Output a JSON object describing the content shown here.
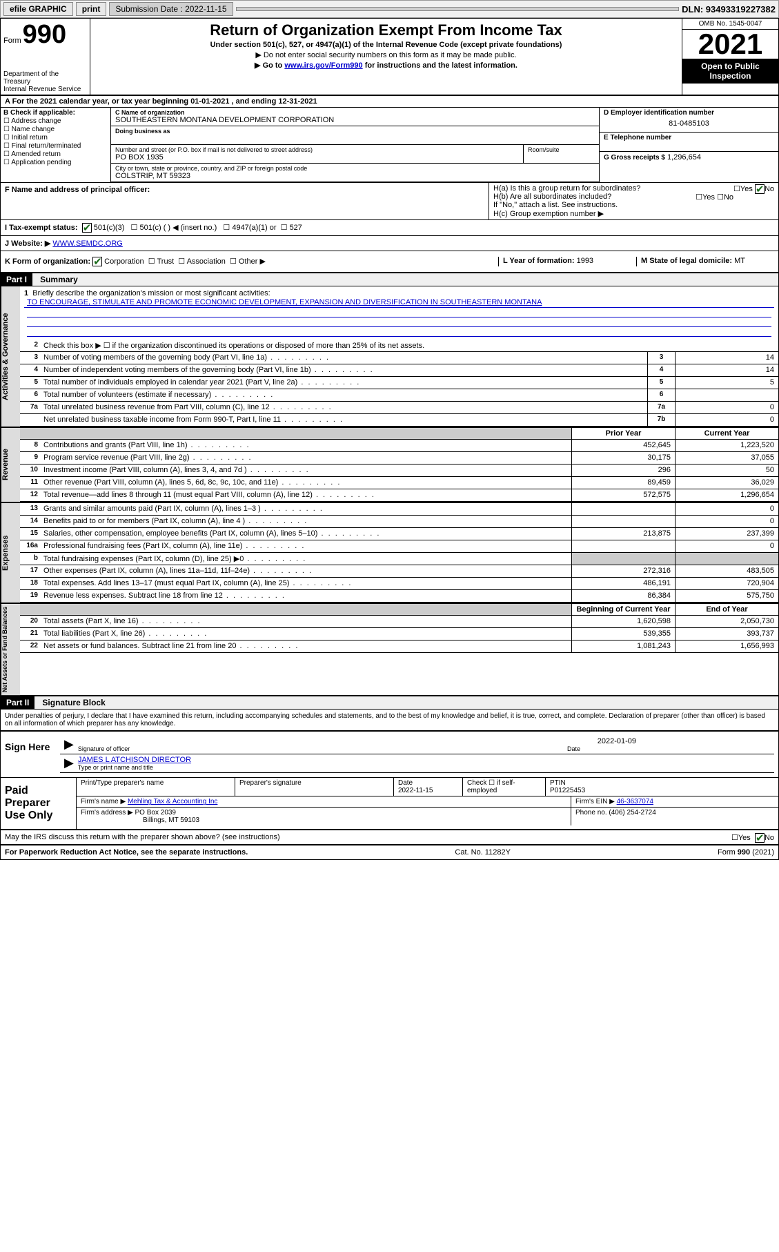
{
  "topbar": {
    "efile": "efile GRAPHIC",
    "print": "print",
    "submission_label": "Submission Date : 2022-11-15",
    "dln": "DLN: 93493319227382"
  },
  "header": {
    "form_prefix": "Form",
    "form_number": "990",
    "title": "Return of Organization Exempt From Income Tax",
    "subtitle": "Under section 501(c), 527, or 4947(a)(1) of the Internal Revenue Code (except private foundations)",
    "note1": "▶ Do not enter social security numbers on this form as it may be made public.",
    "note2_pre": "▶ Go to ",
    "note2_link": "www.irs.gov/Form990",
    "note2_post": " for instructions and the latest information.",
    "dept": "Department of the Treasury",
    "irs": "Internal Revenue Service",
    "omb": "OMB No. 1545-0047",
    "year": "2021",
    "open_public": "Open to Public Inspection"
  },
  "sectionA": {
    "cal_year": "A For the 2021 calendar year, or tax year beginning 01-01-2021    , and ending 12-31-2021",
    "b_label": "B Check if applicable:",
    "checks": [
      "Address change",
      "Name change",
      "Initial return",
      "Final return/terminated",
      "Amended return",
      "Application pending"
    ],
    "c_label": "C Name of organization",
    "org_name": "SOUTHEASTERN MONTANA DEVELOPMENT CORPORATION",
    "dba_label": "Doing business as",
    "addr_label": "Number and street (or P.O. box if mail is not delivered to street address)",
    "room_label": "Room/suite",
    "addr": "PO BOX 1935",
    "city_label": "City or town, state or province, country, and ZIP or foreign postal code",
    "city": "COLSTRIP, MT  59323",
    "d_label": "D Employer identification number",
    "ein": "81-0485103",
    "e_label": "E Telephone number",
    "g_label": "G Gross receipts $",
    "g_val": "1,296,654",
    "f_label": "F  Name and address of principal officer:",
    "ha": "H(a)  Is this a group return for subordinates?",
    "hb": "H(b)  Are all subordinates included?",
    "hb_note": "If \"No,\" attach a list. See instructions.",
    "hc": "H(c)  Group exemption number ▶",
    "yes": "Yes",
    "no": "No"
  },
  "sectionI": {
    "i_label": "I    Tax-exempt status:",
    "c3": "501(c)(3)",
    "c_other": "501(c) (  ) ◀ (insert no.)",
    "a1": "4947(a)(1) or",
    "s527": "527",
    "j_label": "J    Website: ▶",
    "website": "WWW.SEMDC.ORG"
  },
  "sectionK": {
    "k_label": "K Form of organization:",
    "corp": "Corporation",
    "trust": "Trust",
    "assoc": "Association",
    "other": "Other ▶",
    "l_label": "L Year of formation:",
    "l_val": "1993",
    "m_label": "M State of legal domicile:",
    "m_val": "MT"
  },
  "part1": {
    "hdr": "Part I",
    "title": "Summary",
    "tab_gov": "Activities & Governance",
    "tab_rev": "Revenue",
    "tab_exp": "Expenses",
    "tab_net": "Net Assets or Fund Balances",
    "prior": "Prior Year",
    "current": "Current Year",
    "begin": "Beginning of Current Year",
    "end": "End of Year",
    "line1_label": "Briefly describe the organization's mission or most significant activities:",
    "mission": "TO ENCOURAGE, STIMULATE AND PROMOTE ECONOMIC DEVELOPMENT, EXPANSION AND DIVERSIFICATION IN SOUTHEASTERN MONTANA",
    "lines_gov": [
      {
        "n": "2",
        "d": "Check this box ▶ ☐  if the organization discontinued its operations or disposed of more than 25% of its net assets."
      },
      {
        "n": "3",
        "d": "Number of voting members of the governing body (Part VI, line 1a)",
        "box": "3",
        "v": "14"
      },
      {
        "n": "4",
        "d": "Number of independent voting members of the governing body (Part VI, line 1b)",
        "box": "4",
        "v": "14"
      },
      {
        "n": "5",
        "d": "Total number of individuals employed in calendar year 2021 (Part V, line 2a)",
        "box": "5",
        "v": "5"
      },
      {
        "n": "6",
        "d": "Total number of volunteers (estimate if necessary)",
        "box": "6",
        "v": ""
      },
      {
        "n": "7a",
        "d": "Total unrelated business revenue from Part VIII, column (C), line 12",
        "box": "7a",
        "v": "0"
      },
      {
        "n": "",
        "d": "Net unrelated business taxable income from Form 990-T, Part I, line 11",
        "box": "7b",
        "v": "0"
      }
    ],
    "lines_rev": [
      {
        "n": "8",
        "d": "Contributions and grants (Part VIII, line 1h)",
        "p": "452,645",
        "c": "1,223,520"
      },
      {
        "n": "9",
        "d": "Program service revenue (Part VIII, line 2g)",
        "p": "30,175",
        "c": "37,055"
      },
      {
        "n": "10",
        "d": "Investment income (Part VIII, column (A), lines 3, 4, and 7d )",
        "p": "296",
        "c": "50"
      },
      {
        "n": "11",
        "d": "Other revenue (Part VIII, column (A), lines 5, 6d, 8c, 9c, 10c, and 11e)",
        "p": "89,459",
        "c": "36,029"
      },
      {
        "n": "12",
        "d": "Total revenue—add lines 8 through 11 (must equal Part VIII, column (A), line 12)",
        "p": "572,575",
        "c": "1,296,654"
      }
    ],
    "lines_exp": [
      {
        "n": "13",
        "d": "Grants and similar amounts paid (Part IX, column (A), lines 1–3 )",
        "p": "",
        "c": "0"
      },
      {
        "n": "14",
        "d": "Benefits paid to or for members (Part IX, column (A), line 4 )",
        "p": "",
        "c": "0"
      },
      {
        "n": "15",
        "d": "Salaries, other compensation, employee benefits (Part IX, column (A), lines 5–10)",
        "p": "213,875",
        "c": "237,399"
      },
      {
        "n": "16a",
        "d": "Professional fundraising fees (Part IX, column (A), line 11e)",
        "p": "",
        "c": "0"
      },
      {
        "n": "b",
        "d": "Total fundraising expenses (Part IX, column (D), line 25) ▶0",
        "p": "shade",
        "c": "shade"
      },
      {
        "n": "17",
        "d": "Other expenses (Part IX, column (A), lines 11a–11d, 11f–24e)",
        "p": "272,316",
        "c": "483,505"
      },
      {
        "n": "18",
        "d": "Total expenses. Add lines 13–17 (must equal Part IX, column (A), line 25)",
        "p": "486,191",
        "c": "720,904"
      },
      {
        "n": "19",
        "d": "Revenue less expenses. Subtract line 18 from line 12",
        "p": "86,384",
        "c": "575,750"
      }
    ],
    "lines_net": [
      {
        "n": "20",
        "d": "Total assets (Part X, line 16)",
        "p": "1,620,598",
        "c": "2,050,730"
      },
      {
        "n": "21",
        "d": "Total liabilities (Part X, line 26)",
        "p": "539,355",
        "c": "393,737"
      },
      {
        "n": "22",
        "d": "Net assets or fund balances. Subtract line 21 from line 20",
        "p": "1,081,243",
        "c": "1,656,993"
      }
    ]
  },
  "part2": {
    "hdr": "Part II",
    "title": "Signature Block",
    "penalty": "Under penalties of perjury, I declare that I have examined this return, including accompanying schedules and statements, and to the best of my knowledge and belief, it is true, correct, and complete. Declaration of preparer (other than officer) is based on all information of which preparer has any knowledge.",
    "sign_here": "Sign Here",
    "sig_officer": "Signature of officer",
    "sig_date": "2022-01-09",
    "date_lbl": "Date",
    "officer_name": "JAMES L ATCHISON  DIRECTOR",
    "type_name": "Type or print name and title",
    "paid_prep": "Paid Preparer Use Only",
    "prep_name_lbl": "Print/Type preparer's name",
    "prep_sig_lbl": "Preparer's signature",
    "prep_date_lbl": "Date",
    "prep_date": "2022-11-15",
    "check_if": "Check ☐ if self-employed",
    "ptin_lbl": "PTIN",
    "ptin": "P01225453",
    "firm_name_lbl": "Firm's name    ▶",
    "firm_name": "Mehling Tax & Accounting Inc",
    "firm_ein_lbl": "Firm's EIN ▶",
    "firm_ein": "46-3637074",
    "firm_addr_lbl": "Firm's address ▶",
    "firm_addr": "PO Box 2039",
    "firm_city": "Billings, MT  59103",
    "phone_lbl": "Phone no.",
    "phone": "(406) 254-2724",
    "may_irs": "May the IRS discuss this return with the preparer shown above? (see instructions)"
  },
  "footer": {
    "paperwork": "For Paperwork Reduction Act Notice, see the separate instructions.",
    "cat": "Cat. No. 11282Y",
    "form": "Form 990 (2021)"
  }
}
